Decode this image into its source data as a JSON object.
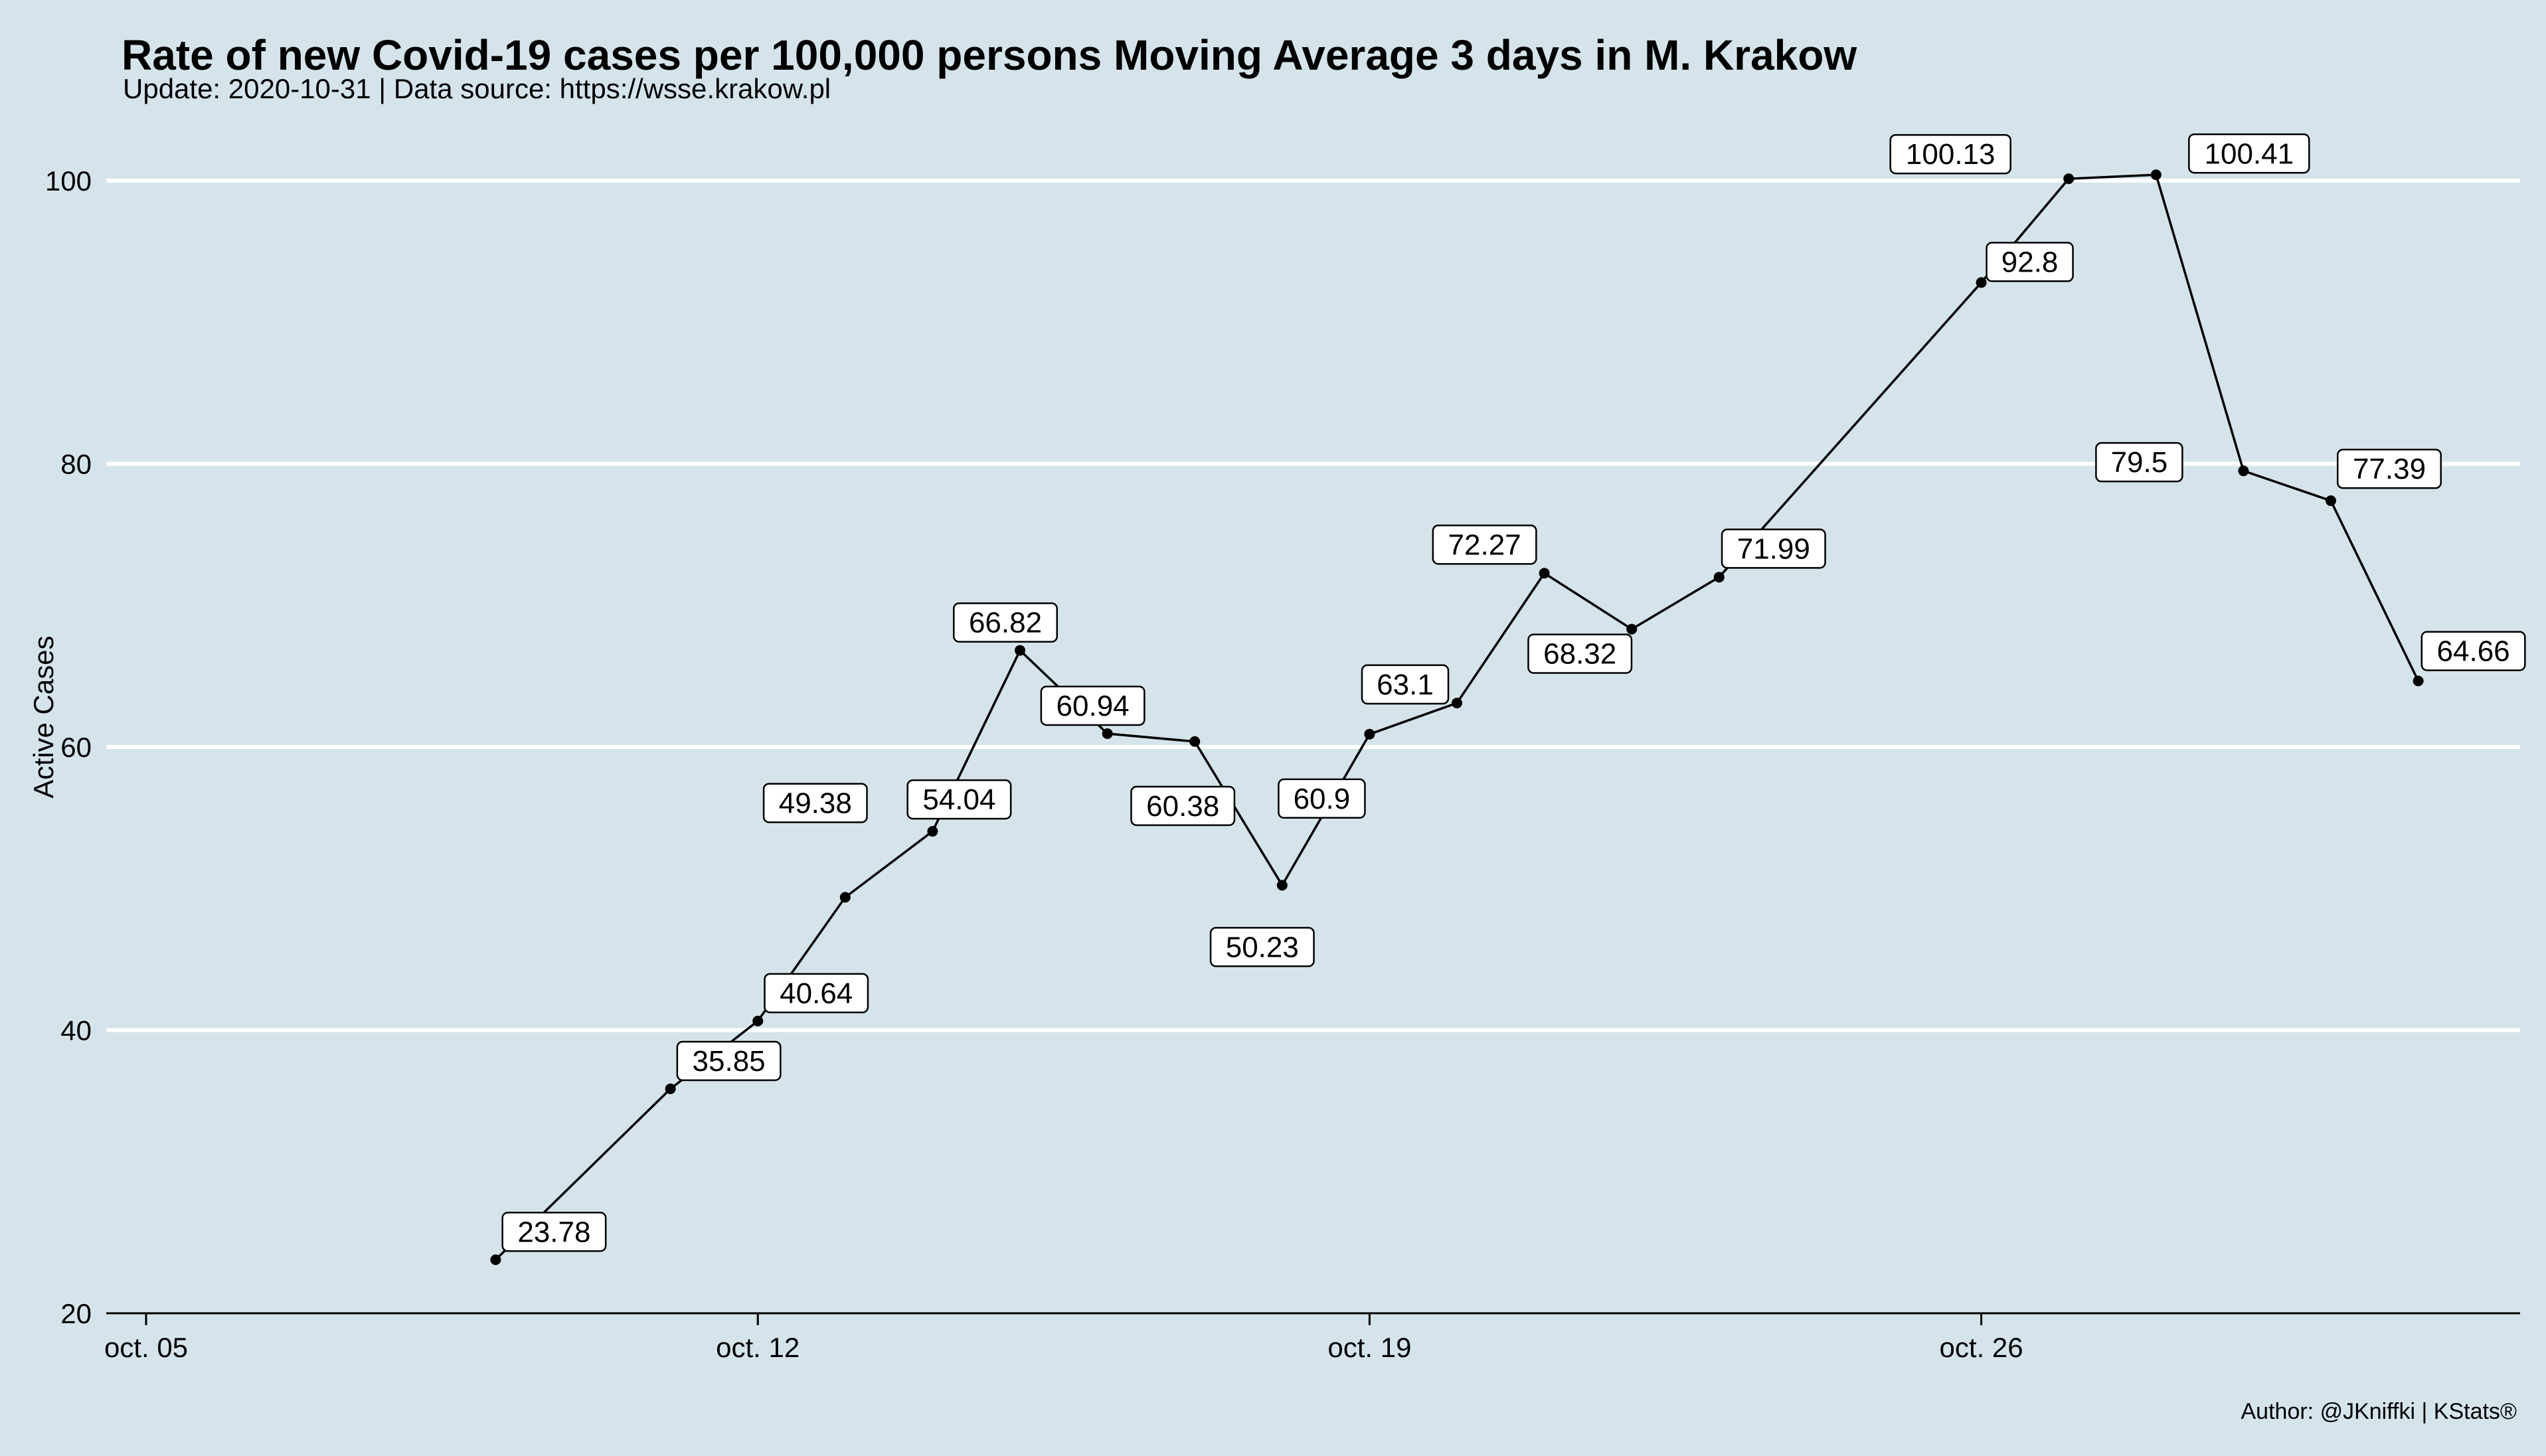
{
  "chart_data": {
    "type": "line",
    "title": "Rate of new Covid-19 cases per 100,000 persons Moving Average 3 days in M. Krakow",
    "subtitle": "Update: 2020-10-31 | Data source: https://wsse.krakow.pl",
    "ylabel": "Active Cases",
    "xlabel": "",
    "caption": "Author: @JKniffki | KStats®",
    "ylim": [
      20,
      100
    ],
    "yticks": [
      20,
      40,
      60,
      80,
      100
    ],
    "xticks": [
      {
        "date": "2020-10-05",
        "label": "oct. 05"
      },
      {
        "date": "2020-10-12",
        "label": "oct. 12"
      },
      {
        "date": "2020-10-19",
        "label": "oct. 19"
      },
      {
        "date": "2020-10-26",
        "label": "oct. 26"
      }
    ],
    "xlim": [
      "2020-10-05",
      "2020-10-31"
    ],
    "grid": {
      "horizontal_major": true,
      "vertical": false
    },
    "colors": {
      "background": "#d4e4ea",
      "line": "#000000",
      "grid": "#ffffff",
      "label_bg": "#ffffff"
    },
    "points": [
      {
        "date": "2020-10-09",
        "value": 23.78,
        "label": "23.78"
      },
      {
        "date": "2020-10-11",
        "value": 35.85,
        "label": "35.85"
      },
      {
        "date": "2020-10-12",
        "value": 40.64,
        "label": "40.64"
      },
      {
        "date": "2020-10-13",
        "value": 49.38,
        "label": "49.38"
      },
      {
        "date": "2020-10-14",
        "value": 54.04,
        "label": "54.04"
      },
      {
        "date": "2020-10-15",
        "value": 66.82,
        "label": "66.82"
      },
      {
        "date": "2020-10-16",
        "value": 60.94,
        "label": "60.94"
      },
      {
        "date": "2020-10-17",
        "value": 60.38,
        "label": "60.38"
      },
      {
        "date": "2020-10-18",
        "value": 50.23,
        "label": "50.23"
      },
      {
        "date": "2020-10-19",
        "value": 60.9,
        "label": "60.9"
      },
      {
        "date": "2020-10-20",
        "value": 63.1,
        "label": "63.1"
      },
      {
        "date": "2020-10-21",
        "value": 72.27,
        "label": "72.27"
      },
      {
        "date": "2020-10-22",
        "value": 68.32,
        "label": "68.32"
      },
      {
        "date": "2020-10-23",
        "value": 71.99,
        "label": "71.99"
      },
      {
        "date": "2020-10-26",
        "value": 92.8,
        "label": "92.8"
      },
      {
        "date": "2020-10-27",
        "value": 100.13,
        "label": "100.13"
      },
      {
        "date": "2020-10-28",
        "value": 100.41,
        "label": "100.41"
      },
      {
        "date": "2020-10-29",
        "value": 79.5,
        "label": "79.5"
      },
      {
        "date": "2020-10-30",
        "value": 77.39,
        "label": "77.39"
      },
      {
        "date": "2020-10-31",
        "value": 64.66,
        "label": "64.66"
      }
    ]
  }
}
